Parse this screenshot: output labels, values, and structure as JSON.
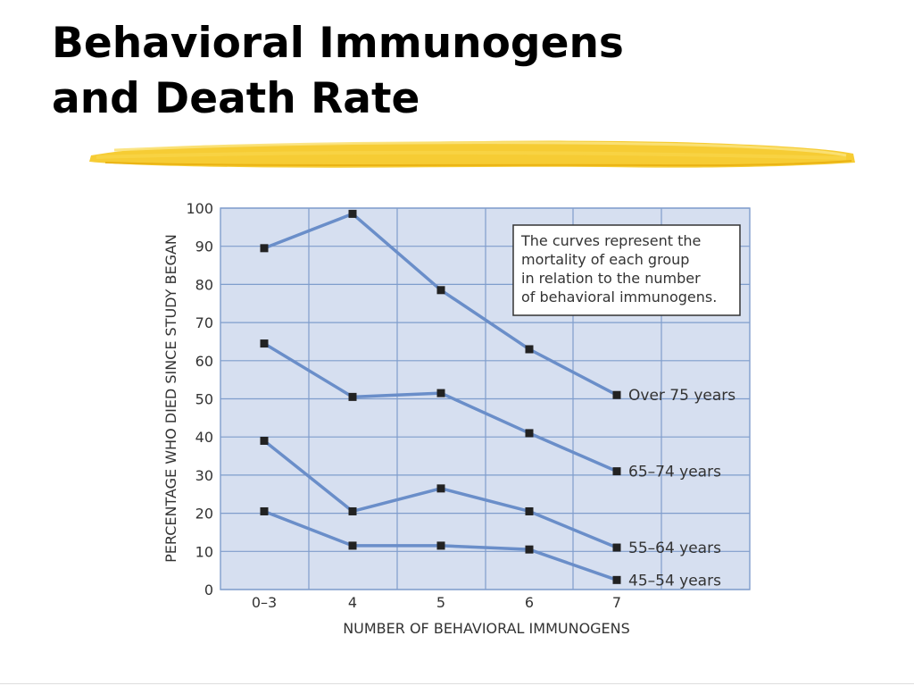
{
  "slide": {
    "title_line1": "Behavioral Immunogens",
    "title_line2": "and Death Rate"
  },
  "colors": {
    "plot_background": "#d6dff0",
    "grid": "#7f9dcc",
    "line": "#6a8ec9",
    "marker": "#222222",
    "highlight": "#f5c518"
  },
  "chart_data": {
    "type": "line",
    "title": "",
    "xlabel": "NUMBER OF BEHAVIORAL IMMUNOGENS",
    "ylabel": "PERCENTAGE WHO DIED SINCE STUDY BEGAN",
    "categories": [
      "0–3",
      "4",
      "5",
      "6",
      "7"
    ],
    "ylim": [
      0,
      100
    ],
    "yticks": [
      0,
      10,
      20,
      30,
      40,
      50,
      60,
      70,
      80,
      90,
      100
    ],
    "grid": true,
    "annotation": [
      "The curves represent the",
      "mortality of each group",
      "in relation to the number",
      "of behavioral immunogens."
    ],
    "series": [
      {
        "name": "Over 75 years",
        "values": [
          89.5,
          98.5,
          78.5,
          63,
          51
        ]
      },
      {
        "name": "65–74 years",
        "values": [
          64.5,
          50.5,
          51.5,
          41,
          31
        ]
      },
      {
        "name": "55–64 years",
        "values": [
          39,
          20.5,
          26.5,
          20.5,
          11
        ]
      },
      {
        "name": "45–54 years",
        "values": [
          20.5,
          11.5,
          11.5,
          10.5,
          2.5
        ]
      }
    ]
  }
}
